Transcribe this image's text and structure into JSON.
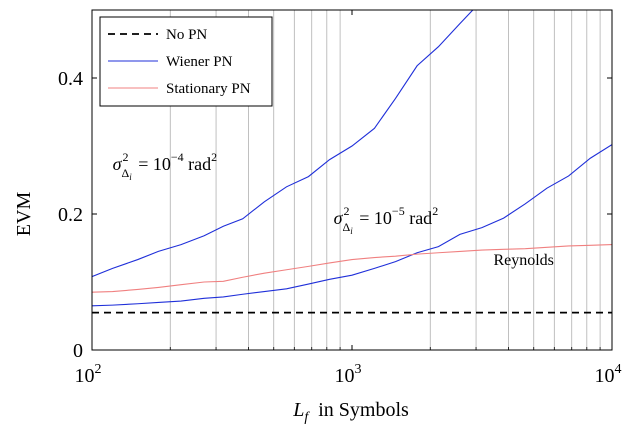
{
  "chart_data": {
    "type": "line",
    "xscale": "log",
    "xlim": [
      100,
      10000
    ],
    "ylim": [
      0,
      0.5
    ],
    "grid": "x-minor-vertical",
    "xlabel": "L_f in Symbols",
    "ylabel": "EVM",
    "xticks": [
      {
        "value": 100,
        "base": "10",
        "exp": "2"
      },
      {
        "value": 1000,
        "base": "10",
        "exp": "3"
      },
      {
        "value": 10000,
        "base": "10",
        "exp": "4"
      }
    ],
    "yticks": [
      {
        "value": 0,
        "label": "0"
      },
      {
        "value": 0.2,
        "label": "0.2"
      },
      {
        "value": 0.4,
        "label": "0.4"
      }
    ],
    "legend": {
      "placement": "top-left"
    },
    "series": [
      {
        "name": "No PN",
        "style": "dashed",
        "color": "#000000",
        "x": [
          100,
          10000
        ],
        "y": [
          0.055,
          0.055
        ]
      },
      {
        "name": "Wiener PN",
        "style": "solid",
        "color": "#1f2fd9",
        "x": [
          100,
          120,
          150,
          180,
          220,
          270,
          320,
          380,
          460,
          560,
          680,
          820,
          1000,
          1220,
          1470,
          1780,
          2150,
          2600,
          3000
        ],
        "y": [
          0.108,
          0.12,
          0.133,
          0.145,
          0.155,
          0.168,
          0.182,
          0.193,
          0.218,
          0.24,
          0.255,
          0.28,
          0.3,
          0.326,
          0.37,
          0.418,
          0.446,
          0.48,
          0.505
        ]
      },
      {
        "name": "Wiener PN",
        "legend": false,
        "style": "solid",
        "color": "#1f2fd9",
        "x": [
          100,
          120,
          150,
          180,
          220,
          270,
          320,
          380,
          460,
          560,
          680,
          820,
          1000,
          1220,
          1470,
          1780,
          2150,
          2600,
          3160,
          3830,
          4640,
          5620,
          6810,
          8250,
          10000
        ],
        "y": [
          0.065,
          0.066,
          0.068,
          0.07,
          0.072,
          0.076,
          0.078,
          0.082,
          0.086,
          0.09,
          0.097,
          0.104,
          0.11,
          0.12,
          0.13,
          0.143,
          0.152,
          0.17,
          0.18,
          0.194,
          0.215,
          0.238,
          0.256,
          0.282,
          0.302
        ]
      },
      {
        "name": "Stationary PN",
        "style": "solid",
        "color": "#f08080",
        "x": [
          100,
          120,
          150,
          180,
          220,
          270,
          320,
          380,
          460,
          560,
          680,
          820,
          1000,
          1220,
          1470,
          1780,
          2150,
          2600,
          3160,
          3830,
          4640,
          5620,
          6810,
          8250,
          10000
        ],
        "y": [
          0.085,
          0.086,
          0.089,
          0.092,
          0.096,
          0.1,
          0.101,
          0.107,
          0.113,
          0.118,
          0.123,
          0.128,
          0.133,
          0.136,
          0.138,
          0.141,
          0.143,
          0.145,
          0.147,
          0.148,
          0.149,
          0.151,
          0.153,
          0.154,
          0.155
        ]
      }
    ],
    "annotations": [
      {
        "id": "ann1",
        "x": 120,
        "y": 0.265,
        "lhs": "σ",
        "sup": "2",
        "sub": "Δ",
        "subsub": "i",
        "rhs": " = 10",
        "exp": "−4",
        "unit": " rad",
        "unitexp": "2"
      },
      {
        "id": "ann2",
        "x": 850,
        "y": 0.185,
        "lhs": "σ",
        "sup": "2",
        "sub": "Δ",
        "subsub": "i",
        "rhs": " = 10",
        "exp": "−5",
        "unit": " rad",
        "unitexp": "2"
      },
      {
        "id": "ann3",
        "x": 3500,
        "y": 0.125,
        "text": "Reynolds"
      }
    ]
  }
}
